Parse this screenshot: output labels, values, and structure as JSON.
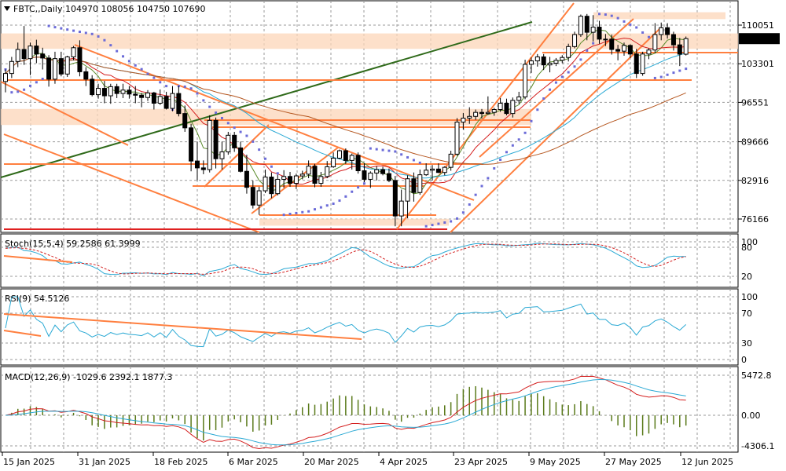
{
  "chart_data": {
    "type": "candlestick",
    "symbol_label": "FBTC,,Daily",
    "ohlc": {
      "open": "104970",
      "high": "108056",
      "low": "104750",
      "close": "107690"
    },
    "current_price": 107690,
    "price_axis": {
      "ticks": [
        110051,
        103301,
        96551,
        89666,
        82916,
        76166
      ]
    },
    "date_labels": [
      "15 Jan 2025",
      "31 Jan 2025",
      "18 Feb 2025",
      "6 Mar 2025",
      "20 Mar 2025",
      "4 Apr 2025",
      "23 Apr 2025",
      "9 May 2025",
      "27 May 2025",
      "12 Jun 2025"
    ],
    "colors": {
      "up_body": "#ffffff",
      "down_body": "#000000",
      "trendline": "#ff7f3f",
      "zone": "#fcd6b8",
      "sar": "#6b6bd8",
      "ma_fast": "#d41f1f",
      "ma_mid": "#2aa9d4",
      "ma_slow": "#b5561f",
      "ma_green": "#5a8a2a",
      "channel_green": "#2f6a1a",
      "support_red": "#e02020"
    },
    "candles": [
      {
        "o": 100200,
        "h": 102300,
        "l": 98300,
        "c": 101600
      },
      {
        "o": 101600,
        "h": 104500,
        "l": 100800,
        "c": 103700
      },
      {
        "o": 103700,
        "h": 107000,
        "l": 102700,
        "c": 105800
      },
      {
        "o": 105800,
        "h": 109900,
        "l": 103100,
        "c": 104200
      },
      {
        "o": 104200,
        "h": 107000,
        "l": 101300,
        "c": 106400
      },
      {
        "o": 106400,
        "h": 107500,
        "l": 103400,
        "c": 105000
      },
      {
        "o": 105000,
        "h": 106100,
        "l": 102300,
        "c": 104300
      },
      {
        "o": 104300,
        "h": 104800,
        "l": 99300,
        "c": 100600
      },
      {
        "o": 100600,
        "h": 105400,
        "l": 99800,
        "c": 104200
      },
      {
        "o": 104200,
        "h": 105400,
        "l": 101100,
        "c": 101500
      },
      {
        "o": 101500,
        "h": 104700,
        "l": 101000,
        "c": 104500
      },
      {
        "o": 104500,
        "h": 106400,
        "l": 103900,
        "c": 106100
      },
      {
        "o": 106100,
        "h": 107400,
        "l": 101100,
        "c": 101900
      },
      {
        "o": 101900,
        "h": 102700,
        "l": 99400,
        "c": 100600
      },
      {
        "o": 100600,
        "h": 101300,
        "l": 97600,
        "c": 97900
      },
      {
        "o": 97900,
        "h": 99800,
        "l": 97200,
        "c": 99000
      },
      {
        "o": 99000,
        "h": 100300,
        "l": 96400,
        "c": 97700
      },
      {
        "o": 97700,
        "h": 99800,
        "l": 96300,
        "c": 99300
      },
      {
        "o": 99300,
        "h": 99800,
        "l": 97300,
        "c": 98100
      },
      {
        "o": 98100,
        "h": 99800,
        "l": 97300,
        "c": 98700
      },
      {
        "o": 98700,
        "h": 99400,
        "l": 97200,
        "c": 98000
      },
      {
        "o": 98000,
        "h": 99400,
        "l": 96400,
        "c": 97800
      },
      {
        "o": 97800,
        "h": 98200,
        "l": 95700,
        "c": 97400
      },
      {
        "o": 97400,
        "h": 98700,
        "l": 96800,
        "c": 98200
      },
      {
        "o": 98200,
        "h": 98400,
        "l": 95300,
        "c": 96400
      },
      {
        "o": 96400,
        "h": 98800,
        "l": 96100,
        "c": 97600
      },
      {
        "o": 97600,
        "h": 98400,
        "l": 95300,
        "c": 95500
      },
      {
        "o": 95500,
        "h": 99400,
        "l": 95000,
        "c": 98100
      },
      {
        "o": 98100,
        "h": 99400,
        "l": 94100,
        "c": 94600
      },
      {
        "o": 94600,
        "h": 96000,
        "l": 91400,
        "c": 92100
      },
      {
        "o": 92100,
        "h": 92800,
        "l": 84500,
        "c": 86300
      },
      {
        "o": 86300,
        "h": 89700,
        "l": 82900,
        "c": 85100
      },
      {
        "o": 85100,
        "h": 86400,
        "l": 84000,
        "c": 84800
      },
      {
        "o": 84800,
        "h": 94300,
        "l": 84300,
        "c": 93400
      },
      {
        "o": 93400,
        "h": 93900,
        "l": 85000,
        "c": 86700
      },
      {
        "o": 86700,
        "h": 89700,
        "l": 84800,
        "c": 87900
      },
      {
        "o": 87900,
        "h": 91400,
        "l": 87400,
        "c": 90800
      },
      {
        "o": 90800,
        "h": 91400,
        "l": 87900,
        "c": 88600
      },
      {
        "o": 88600,
        "h": 89700,
        "l": 84300,
        "c": 84500
      },
      {
        "o": 84500,
        "h": 87400,
        "l": 80600,
        "c": 81700
      },
      {
        "o": 81700,
        "h": 82900,
        "l": 78000,
        "c": 78600
      },
      {
        "o": 78600,
        "h": 81800,
        "l": 76900,
        "c": 81100
      },
      {
        "o": 81100,
        "h": 84800,
        "l": 80700,
        "c": 83500
      },
      {
        "o": 83500,
        "h": 84300,
        "l": 79800,
        "c": 80600
      },
      {
        "o": 80600,
        "h": 83900,
        "l": 80300,
        "c": 83100
      },
      {
        "o": 83100,
        "h": 84700,
        "l": 81600,
        "c": 83600
      },
      {
        "o": 83600,
        "h": 84400,
        "l": 81800,
        "c": 82400
      },
      {
        "o": 82400,
        "h": 84100,
        "l": 81400,
        "c": 83700
      },
      {
        "o": 83700,
        "h": 84600,
        "l": 83100,
        "c": 84000
      },
      {
        "o": 84000,
        "h": 86400,
        "l": 83300,
        "c": 85400
      },
      {
        "o": 85400,
        "h": 85800,
        "l": 81700,
        "c": 82400
      },
      {
        "o": 82400,
        "h": 84400,
        "l": 81800,
        "c": 83600
      },
      {
        "o": 83600,
        "h": 86300,
        "l": 83300,
        "c": 85300
      },
      {
        "o": 85300,
        "h": 87800,
        "l": 85100,
        "c": 86800
      },
      {
        "o": 86800,
        "h": 88300,
        "l": 86600,
        "c": 88100
      },
      {
        "o": 88100,
        "h": 88500,
        "l": 85800,
        "c": 86400
      },
      {
        "o": 86400,
        "h": 87600,
        "l": 84800,
        "c": 87300
      },
      {
        "o": 87300,
        "h": 87800,
        "l": 84100,
        "c": 84600
      },
      {
        "o": 84600,
        "h": 85900,
        "l": 82600,
        "c": 83100
      },
      {
        "o": 83100,
        "h": 84500,
        "l": 81600,
        "c": 84200
      },
      {
        "o": 84200,
        "h": 85400,
        "l": 82900,
        "c": 84800
      },
      {
        "o": 84800,
        "h": 85300,
        "l": 83800,
        "c": 84100
      },
      {
        "o": 84100,
        "h": 85000,
        "l": 82600,
        "c": 82900
      },
      {
        "o": 82900,
        "h": 83700,
        "l": 74900,
        "c": 76700
      },
      {
        "o": 76700,
        "h": 81300,
        "l": 74900,
        "c": 79300
      },
      {
        "o": 79300,
        "h": 83800,
        "l": 76300,
        "c": 83200
      },
      {
        "o": 83200,
        "h": 84300,
        "l": 79200,
        "c": 80800
      },
      {
        "o": 80800,
        "h": 84800,
        "l": 80400,
        "c": 83900
      },
      {
        "o": 83900,
        "h": 85900,
        "l": 83700,
        "c": 84700
      },
      {
        "o": 84700,
        "h": 85600,
        "l": 82900,
        "c": 84900
      },
      {
        "o": 84900,
        "h": 85900,
        "l": 84200,
        "c": 84300
      },
      {
        "o": 84300,
        "h": 85400,
        "l": 83800,
        "c": 85200
      },
      {
        "o": 85200,
        "h": 88100,
        "l": 84600,
        "c": 87500
      },
      {
        "o": 87500,
        "h": 93800,
        "l": 87200,
        "c": 93100
      },
      {
        "o": 93100,
        "h": 94700,
        "l": 91800,
        "c": 93800
      },
      {
        "o": 93800,
        "h": 95700,
        "l": 92800,
        "c": 94100
      },
      {
        "o": 94100,
        "h": 95300,
        "l": 93500,
        "c": 94800
      },
      {
        "o": 94800,
        "h": 95400,
        "l": 93700,
        "c": 94600
      },
      {
        "o": 94600,
        "h": 97600,
        "l": 94400,
        "c": 94800
      },
      {
        "o": 94800,
        "h": 95600,
        "l": 94200,
        "c": 95300
      },
      {
        "o": 95300,
        "h": 97300,
        "l": 94900,
        "c": 96400
      },
      {
        "o": 96400,
        "h": 97200,
        "l": 94300,
        "c": 94600
      },
      {
        "o": 94600,
        "h": 97400,
        "l": 93900,
        "c": 96900
      },
      {
        "o": 96900,
        "h": 98400,
        "l": 96300,
        "c": 97500
      },
      {
        "o": 97500,
        "h": 104000,
        "l": 97100,
        "c": 103200
      },
      {
        "o": 103200,
        "h": 104400,
        "l": 101700,
        "c": 103800
      },
      {
        "o": 103800,
        "h": 105000,
        "l": 102800,
        "c": 104500
      },
      {
        "o": 104500,
        "h": 105000,
        "l": 102200,
        "c": 103100
      },
      {
        "o": 103100,
        "h": 104500,
        "l": 101800,
        "c": 103400
      },
      {
        "o": 103400,
        "h": 104300,
        "l": 102900,
        "c": 103900
      },
      {
        "o": 103900,
        "h": 104800,
        "l": 103400,
        "c": 104400
      },
      {
        "o": 104400,
        "h": 106800,
        "l": 103700,
        "c": 106300
      },
      {
        "o": 106300,
        "h": 108900,
        "l": 106000,
        "c": 108400
      },
      {
        "o": 108400,
        "h": 111900,
        "l": 108000,
        "c": 111600
      },
      {
        "o": 111600,
        "h": 112000,
        "l": 107400,
        "c": 108800
      },
      {
        "o": 108800,
        "h": 111800,
        "l": 107200,
        "c": 109700
      },
      {
        "o": 109700,
        "h": 110800,
        "l": 106800,
        "c": 107600
      },
      {
        "o": 107600,
        "h": 108500,
        "l": 106400,
        "c": 107600
      },
      {
        "o": 107600,
        "h": 108400,
        "l": 104900,
        "c": 105800
      },
      {
        "o": 105800,
        "h": 106600,
        "l": 103900,
        "c": 105500
      },
      {
        "o": 105500,
        "h": 107000,
        "l": 104700,
        "c": 106500
      },
      {
        "o": 106500,
        "h": 106700,
        "l": 104300,
        "c": 105000
      },
      {
        "o": 105000,
        "h": 105900,
        "l": 100800,
        "c": 101600
      },
      {
        "o": 101600,
        "h": 105400,
        "l": 101200,
        "c": 105000
      },
      {
        "o": 105000,
        "h": 106000,
        "l": 104100,
        "c": 105700
      },
      {
        "o": 105700,
        "h": 110400,
        "l": 105200,
        "c": 108400
      },
      {
        "o": 108400,
        "h": 110500,
        "l": 107400,
        "c": 109600
      },
      {
        "o": 109600,
        "h": 110400,
        "l": 107700,
        "c": 108400
      },
      {
        "o": 108400,
        "h": 108900,
        "l": 105600,
        "c": 106600
      },
      {
        "o": 106600,
        "h": 107800,
        "l": 102900,
        "c": 104970
      },
      {
        "o": 104970,
        "h": 108056,
        "l": 104750,
        "c": 107690
      }
    ],
    "indicators": {
      "stoch": {
        "label": "Stoch(15,5,4) 59.2586 61.3999",
        "levels": [
          100,
          80,
          20
        ],
        "colors": [
          "#2aa9d4",
          "#d41f1f"
        ]
      },
      "rsi": {
        "label": "RSI(9) 54.5126",
        "levels": [
          100,
          70,
          30,
          0
        ],
        "color": "#2aa9d4"
      },
      "macd": {
        "label": "MACD(12,26,9) -1029.6 2392.1 1877.3",
        "levels": [
          "5472.8",
          "0.00",
          "-4306.1"
        ],
        "colors": [
          "#d41f1f",
          "#2aa9d4",
          "#5a7a1a"
        ]
      }
    }
  }
}
